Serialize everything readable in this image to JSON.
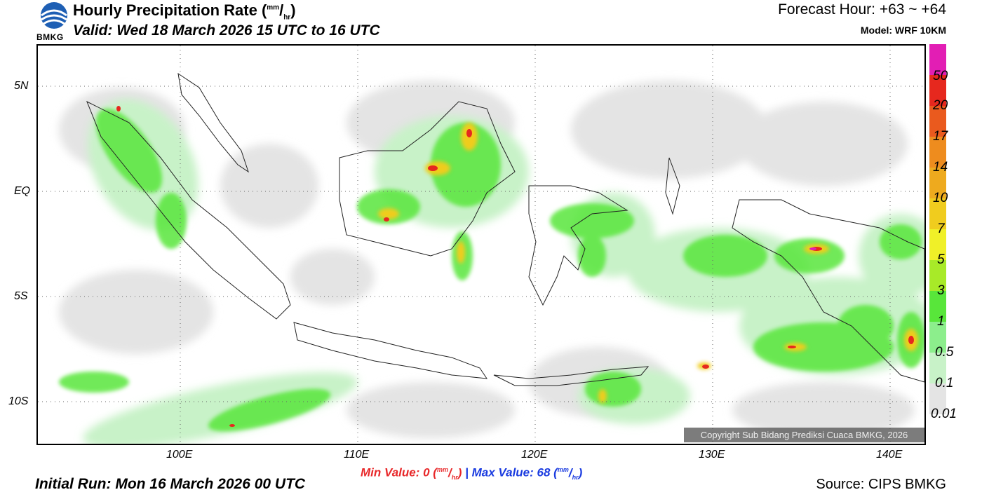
{
  "logo": {
    "text": "BMKG"
  },
  "header": {
    "title": "Hourly Precipitation Rate (",
    "title_unit_top": "mm",
    "title_unit_sep": "/",
    "title_unit_bottom": "hr",
    "title_close": ")",
    "valid": "Valid: Wed 18 March 2026 15 UTC to 16 UTC",
    "forecast_hour": "Forecast Hour: +63 ~ +64",
    "model": "Model: WRF 10KM"
  },
  "footer": {
    "min_label": "Min Value:   0 (",
    "max_label": "Max Value:  68 (",
    "unit_top": "mm",
    "unit_sep": "/",
    "unit_bottom": "hr",
    "unit_close": ")",
    "separator": "|",
    "initial_run": "Initial Run: Mon 16 March 2026 00 UTC",
    "source": "Source: CIPS BMKG",
    "copyright": "Copyright Sub Bidang Prediksi Cuaca BMKG, 2026"
  },
  "axes": {
    "lat_ticks": [
      "5N",
      "EQ",
      "5S",
      "10S"
    ],
    "lon_ticks": [
      "100E",
      "110E",
      "120E",
      "130E",
      "140E"
    ]
  },
  "legend": {
    "labels": [
      "50",
      "20",
      "17",
      "14",
      "10",
      "7",
      "5",
      "3",
      "1",
      "0.5",
      "0.1",
      "0.01"
    ],
    "colors": [
      "#e21eb4",
      "#e6281e",
      "#ea5a1e",
      "#ee8c1e",
      "#eeaa1e",
      "#f0cc1e",
      "#f0f028",
      "#a8ea28",
      "#58e63a",
      "#8cee8c",
      "#c8f2c8",
      "#e4e4e4"
    ]
  }
}
